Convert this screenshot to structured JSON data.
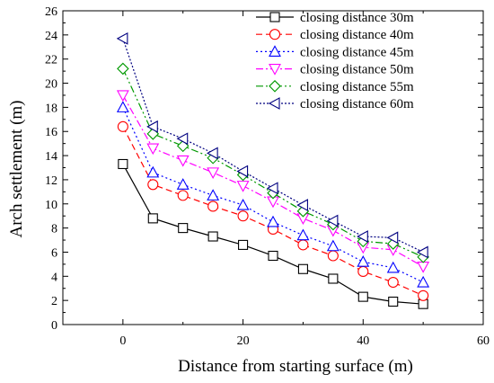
{
  "chart_data": {
    "type": "line",
    "title": "",
    "xlabel": "Distance from starting surface (m)",
    "ylabel": "Arch settlement (m)",
    "xlim": [
      -10,
      60
    ],
    "ylim": [
      0,
      26
    ],
    "xticks": [
      0,
      20,
      40,
      60
    ],
    "yticks": [
      0,
      2,
      4,
      6,
      8,
      10,
      12,
      14,
      16,
      18,
      20,
      22,
      24,
      26
    ],
    "grid": false,
    "legend_position": "top-right",
    "x": [
      0,
      5,
      10,
      15,
      20,
      25,
      30,
      35,
      40,
      45,
      50
    ],
    "series": [
      {
        "name": "closing distance 30m",
        "color": "#000000",
        "dash": "solid",
        "marker": "square",
        "values": [
          13.3,
          8.8,
          8.0,
          7.3,
          6.6,
          5.7,
          4.6,
          3.8,
          2.3,
          1.9,
          1.7
        ]
      },
      {
        "name": "closing distance 40m",
        "color": "#ff0000",
        "dash": "dash",
        "marker": "circle",
        "values": [
          16.4,
          11.6,
          10.7,
          9.8,
          9.0,
          7.9,
          6.6,
          5.7,
          4.4,
          3.5,
          2.4
        ]
      },
      {
        "name": "closing distance 45m",
        "color": "#0000ff",
        "dash": "dot",
        "marker": "triangle-up",
        "values": [
          18.0,
          12.6,
          11.6,
          10.7,
          9.9,
          8.5,
          7.4,
          6.5,
          5.2,
          4.7,
          3.5
        ]
      },
      {
        "name": "closing distance 50m",
        "color": "#ff00ff",
        "dash": "dashdot",
        "marker": "triangle-down",
        "values": [
          19.0,
          14.6,
          13.6,
          12.6,
          11.5,
          10.2,
          8.8,
          7.8,
          6.4,
          6.2,
          4.8
        ]
      },
      {
        "name": "closing distance 55m",
        "color": "#009900",
        "dash": "dashdotdot",
        "marker": "diamond",
        "values": [
          21.2,
          15.8,
          14.8,
          13.8,
          12.4,
          10.9,
          9.4,
          8.3,
          6.9,
          6.7,
          5.6
        ]
      },
      {
        "name": "closing distance 60m",
        "color": "#000080",
        "dash": "shortdot",
        "marker": "triangle-left",
        "values": [
          23.7,
          16.4,
          15.4,
          14.2,
          12.7,
          11.3,
          9.9,
          8.6,
          7.3,
          7.2,
          6.0
        ]
      }
    ]
  }
}
